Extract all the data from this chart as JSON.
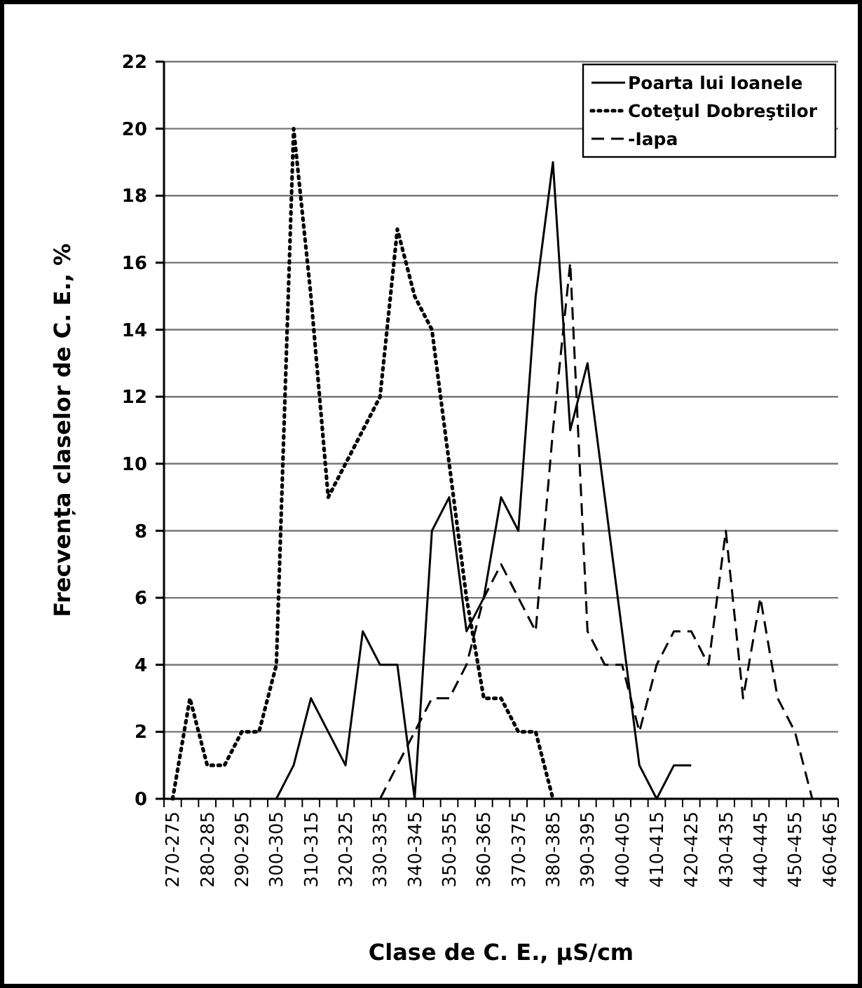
{
  "chart_data": {
    "type": "line",
    "xlabel": "Clase de C. E., µS/cm",
    "ylabel": "Frecvența claselor de C. E., %",
    "categories": [
      "270-275",
      null,
      "280-285",
      null,
      "290-295",
      null,
      "300-305",
      null,
      "310-315",
      null,
      "320-325",
      null,
      "330-335",
      null,
      "340-345",
      null,
      "350-355",
      null,
      "360-365",
      null,
      "370-375",
      null,
      "380-385",
      null,
      "390-395",
      null,
      "400-405",
      null,
      "410-415",
      null,
      "420-425",
      null,
      "430-435",
      null,
      "440-445",
      null,
      "450-455",
      null,
      "460-465"
    ],
    "series": [
      {
        "name": "Poarta lui Ioanele",
        "color": "#000000",
        "line_style": "solid",
        "values": [
          null,
          null,
          null,
          null,
          null,
          null,
          0,
          1,
          3,
          2,
          1,
          5,
          4,
          4,
          0,
          8,
          9,
          5,
          6,
          9,
          8,
          15,
          19,
          11,
          13,
          9,
          5,
          1,
          0,
          1,
          1,
          null,
          null,
          null,
          null,
          null,
          null,
          null,
          null
        ]
      },
      {
        "name": "Coteţul Dobreştilor",
        "color": "#000000",
        "line_style": "dotted",
        "values": [
          0,
          3,
          1,
          1,
          2,
          2,
          4,
          20,
          15,
          9,
          10,
          11,
          12,
          17,
          15,
          14,
          10,
          6,
          3,
          3,
          2,
          2,
          0,
          null,
          null,
          null,
          null,
          null,
          null,
          null,
          null,
          null,
          null,
          null,
          null,
          null,
          null,
          null,
          null
        ]
      },
      {
        "name": "-Iapa",
        "color": "#000000",
        "line_style": "dashed",
        "values": [
          null,
          null,
          null,
          null,
          null,
          null,
          null,
          null,
          null,
          null,
          null,
          null,
          0,
          1,
          2,
          3,
          3,
          4,
          6,
          7,
          6,
          5,
          11,
          16,
          5,
          4,
          4,
          2,
          4,
          5,
          5,
          4,
          8,
          3,
          6,
          3,
          2,
          0,
          null
        ]
      }
    ],
    "ylim": [
      0,
      22
    ],
    "yticks": [
      0,
      2,
      4,
      6,
      8,
      10,
      12,
      14,
      16,
      18,
      20,
      22
    ],
    "grid": "y",
    "legend": "top right",
    "marker": "none"
  }
}
